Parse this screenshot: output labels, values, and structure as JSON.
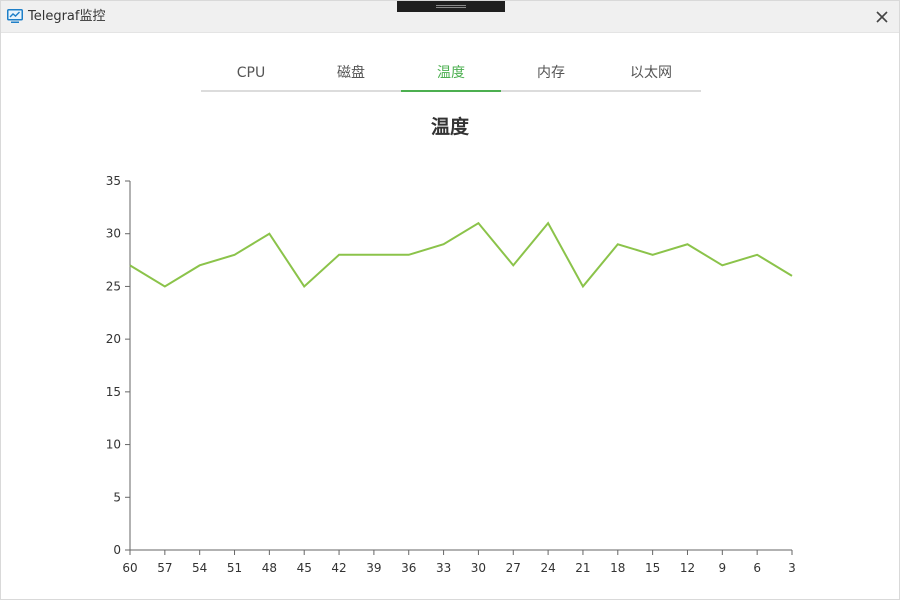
{
  "window": {
    "title": "Telegraf监控",
    "app_icon": "monitor-chart-icon",
    "close_icon": "close-icon"
  },
  "tabs": [
    {
      "label": "CPU",
      "active": false
    },
    {
      "label": "磁盘",
      "active": false
    },
    {
      "label": "温度",
      "active": true
    },
    {
      "label": "内存",
      "active": false
    },
    {
      "label": "以太网",
      "active": false
    }
  ],
  "colors": {
    "accent": "#4caf50",
    "line": "#8bc34a",
    "axis": "#666666"
  },
  "chart_data": {
    "type": "line",
    "title": "温度",
    "xlabel": "",
    "ylabel": "",
    "categories": [
      "60",
      "57",
      "54",
      "51",
      "48",
      "45",
      "42",
      "39",
      "36",
      "33",
      "30",
      "27",
      "24",
      "21",
      "18",
      "15",
      "12",
      "9",
      "6",
      "3"
    ],
    "series": [
      {
        "values": [
          27,
          25,
          27,
          28,
          30,
          25,
          28,
          28,
          28,
          29,
          31,
          27,
          31,
          25,
          29,
          28,
          29,
          27,
          28,
          26
        ]
      }
    ],
    "y_ticks": [
      0,
      5,
      10,
      15,
      20,
      25,
      30,
      35
    ],
    "ylim": [
      0,
      35
    ],
    "grid": false,
    "legend": "none"
  }
}
